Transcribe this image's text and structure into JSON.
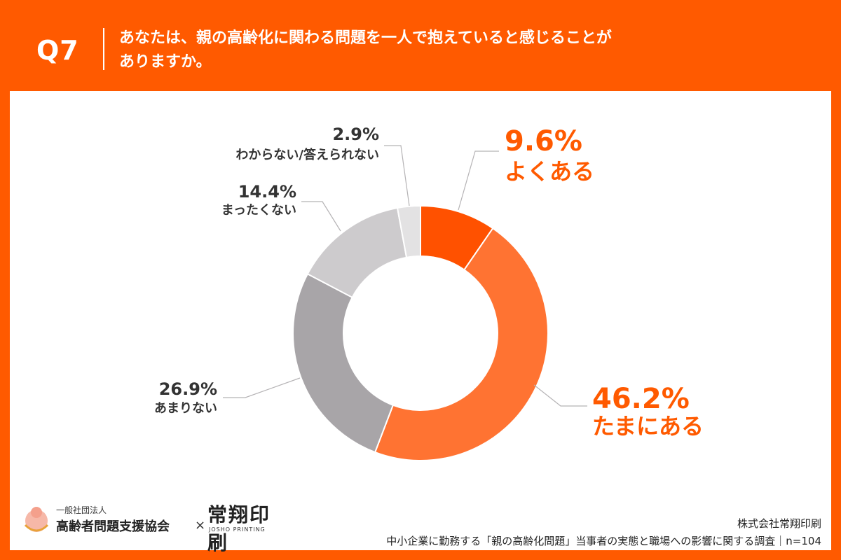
{
  "header": {
    "question_number": "Q7",
    "question_line1": "あなたは、親の高齢化に関わる問題を一人で抱えていると感じることが",
    "question_line2": "ありますか。"
  },
  "colors": {
    "background": "#ff5a00",
    "slice_often": "#ff5100",
    "slice_sometimes": "#ff7332",
    "slice_rarely": "#a8a5a8",
    "slice_never": "#cdcbcd",
    "slice_unknown": "#e3e2e3",
    "highlight_label": "#ff5a00",
    "muted_label": "#333333"
  },
  "chart_data": {
    "type": "pie",
    "donut": true,
    "categories": [
      "よくある",
      "たまにある",
      "あまりない",
      "まったくない",
      "わからない/答えられない"
    ],
    "values": [
      9.6,
      46.2,
      26.9,
      14.4,
      2.9
    ],
    "labels": [
      "9.6%",
      "46.2%",
      "26.9%",
      "14.4%",
      "2.9%"
    ],
    "unit": "%"
  },
  "footer": {
    "org_prefix": "一般社団法人",
    "org_name": "高齢者問題支援協会",
    "times_symbol": "×",
    "partner_logo": "常翔印刷",
    "partner_logo_sub": "JOSHO PRINTING",
    "company": "株式会社常翔印刷",
    "survey_note": "中小企業に勤務する「親の高齢化問題」当事者の実態と職場への影響に関する調査｜n=104"
  }
}
